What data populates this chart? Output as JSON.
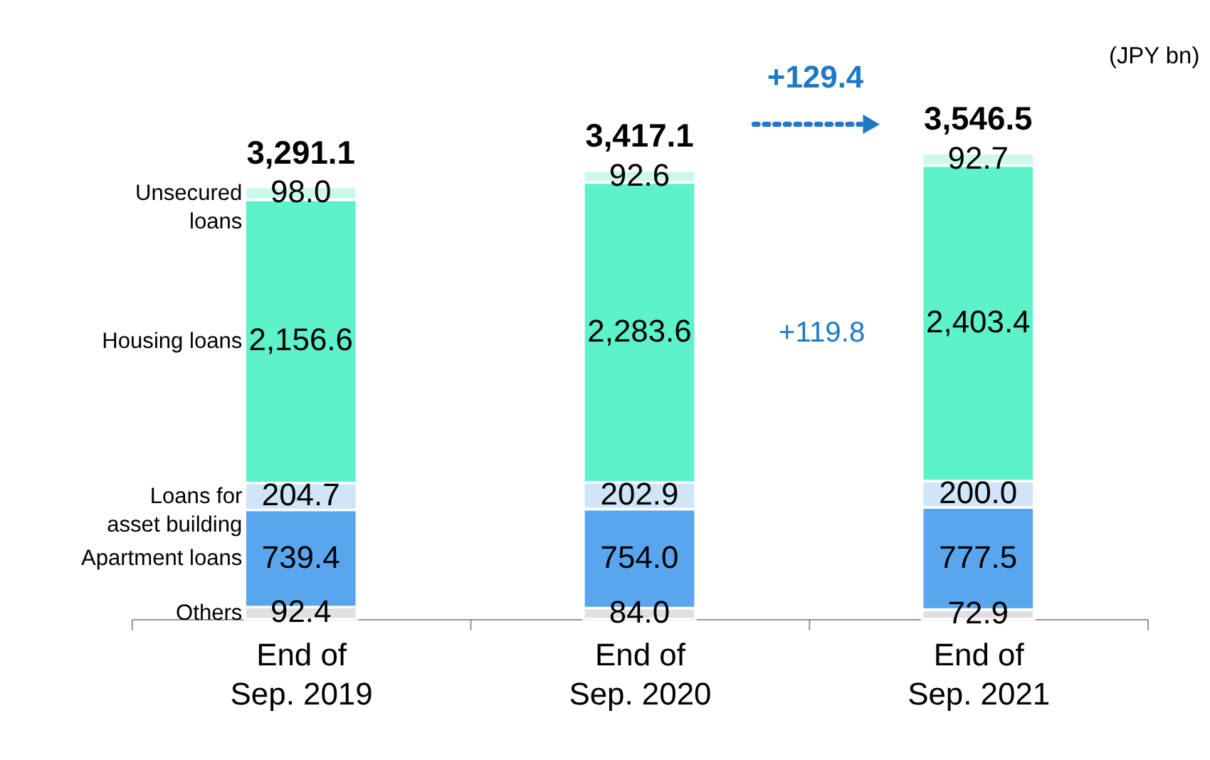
{
  "chart_data": {
    "type": "bar",
    "stacked": true,
    "legend": false,
    "grid": false,
    "tick_labels": "x",
    "categories": [
      "End of\nSep. 2019",
      "End of\nSep. 2020",
      "End of\nSep. 2021"
    ],
    "series": [
      {
        "name": "Others",
        "color": "#e0e0e0",
        "values": [
          92.4,
          84.0,
          72.9
        ],
        "value_labels": [
          "92.4",
          "84.0",
          "72.9"
        ]
      },
      {
        "name": "Apartment loans",
        "color": "#5aa6ee",
        "values": [
          739.4,
          754.0,
          777.5
        ],
        "value_labels": [
          "739.4",
          "754.0",
          "777.5"
        ]
      },
      {
        "name": "Loans for\nasset building",
        "color": "#cfe5f8",
        "values": [
          204.7,
          202.9,
          200.0
        ],
        "value_labels": [
          "204.7",
          "202.9",
          "200.0"
        ]
      },
      {
        "name": "Housing loans",
        "color": "#5ef2ca",
        "values": [
          2156.6,
          2283.6,
          2403.4
        ],
        "value_labels": [
          "2,156.6",
          "2,283.6",
          "2,403.4"
        ]
      },
      {
        "name": "Unsecured\nloans",
        "color": "#cdf8ec",
        "values": [
          98.0,
          92.6,
          92.7
        ],
        "value_labels": [
          "98.0",
          "92.6",
          "92.7"
        ]
      }
    ],
    "totals": [
      "3,291.1",
      "3,417.1",
      "3,546.5"
    ],
    "annotations": [
      "(JPY bn)",
      "+129.4",
      "+119.8"
    ]
  }
}
